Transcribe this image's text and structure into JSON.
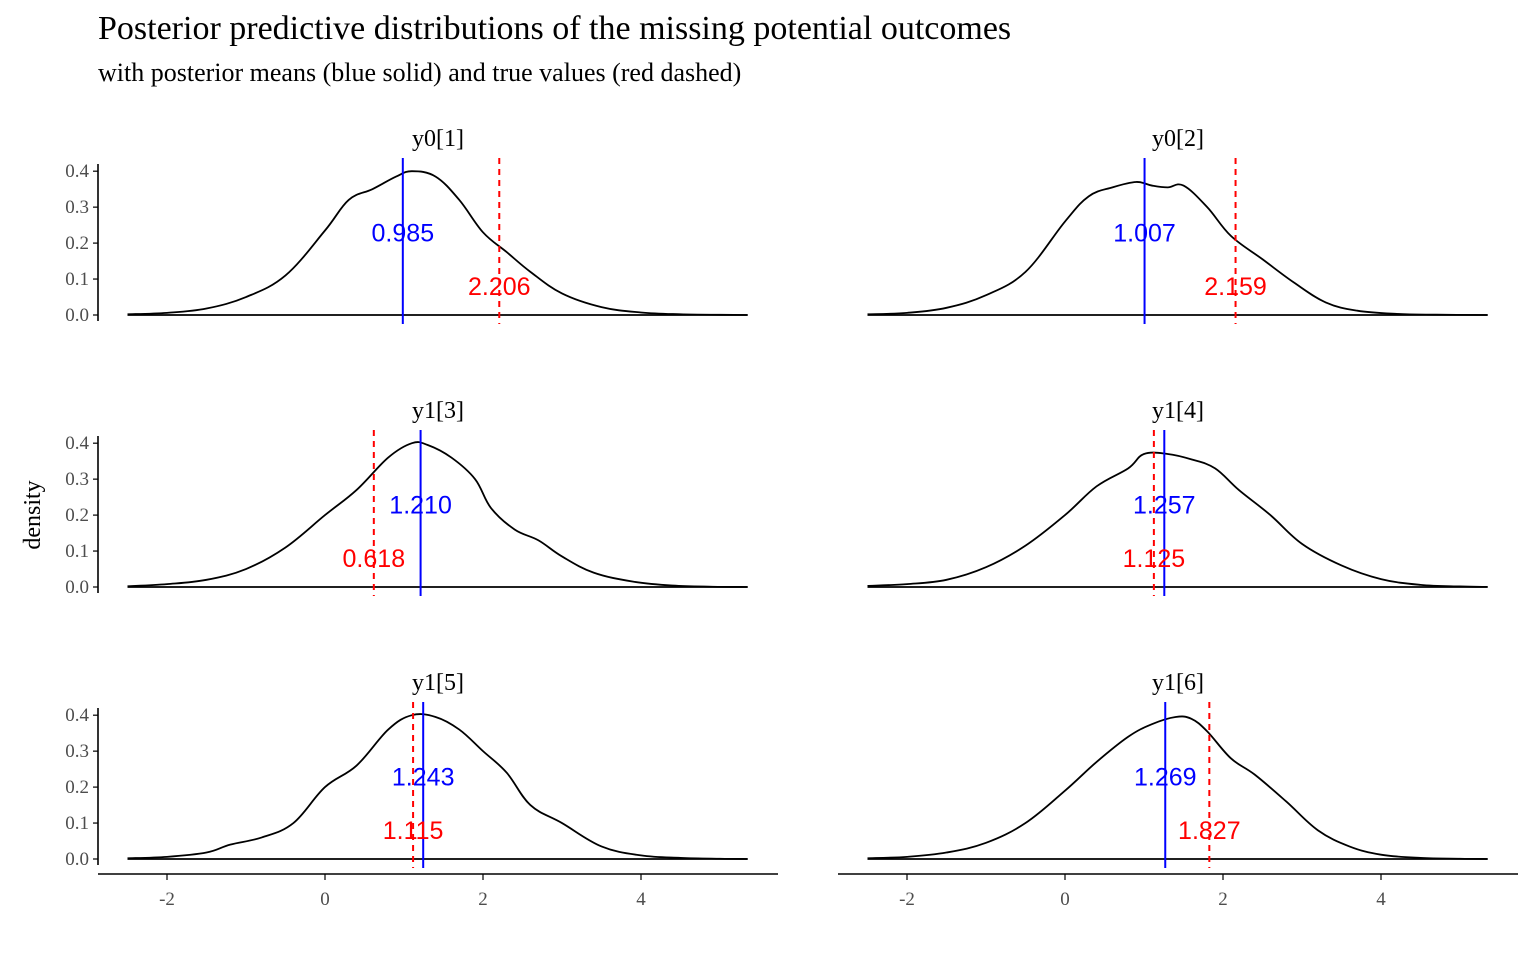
{
  "chart_data": {
    "type": "area",
    "title": "Posterior predictive distributions of the missing potential outcomes",
    "subtitle": "with posterior means (blue solid) and true values (red dashed)",
    "xlabel": "",
    "ylabel": "density",
    "xlim": [
      -2.55,
      5.55
    ],
    "ylim": [
      0,
      0.42
    ],
    "x_ticks": [
      -2,
      0,
      2,
      4
    ],
    "y_ticks": [
      0.0,
      0.1,
      0.2,
      0.3,
      0.4
    ],
    "y_tick_labels": [
      "0.0",
      "0.1",
      "0.2",
      "0.3",
      "0.4"
    ],
    "grid": false,
    "layout": "facets, 3 rows x 2 columns",
    "colors": {
      "density": "#000000",
      "posterior_mean": "#0000ff",
      "true_value": "#ff0000",
      "axis_text": "#4d4d4d"
    },
    "panels": [
      {
        "label": "y0[1]",
        "posterior_mean": 0.985,
        "posterior_mean_label": "0.985",
        "true_value": 2.206,
        "true_value_label": "2.206",
        "x": [
          -2.5,
          -2.0,
          -1.5,
          -1.0,
          -0.5,
          0.0,
          0.3,
          0.6,
          0.9,
          1.1,
          1.4,
          1.7,
          2.0,
          2.3,
          2.6,
          3.0,
          3.5,
          4.0,
          4.5,
          5.0,
          5.35
        ],
        "density": [
          0.002,
          0.006,
          0.018,
          0.05,
          0.11,
          0.235,
          0.32,
          0.35,
          0.385,
          0.4,
          0.385,
          0.32,
          0.23,
          0.175,
          0.12,
          0.06,
          0.022,
          0.007,
          0.002,
          0.0005,
          0.0001
        ]
      },
      {
        "label": "y0[2]",
        "posterior_mean": 1.007,
        "posterior_mean_label": "1.007",
        "true_value": 2.159,
        "true_value_label": "2.159",
        "x": [
          -2.5,
          -2.0,
          -1.5,
          -1.0,
          -0.5,
          0.0,
          0.3,
          0.6,
          0.9,
          1.1,
          1.3,
          1.5,
          1.8,
          2.1,
          2.5,
          2.9,
          3.3,
          3.7,
          4.2,
          4.7,
          5.35
        ],
        "density": [
          0.002,
          0.006,
          0.02,
          0.055,
          0.12,
          0.26,
          0.33,
          0.355,
          0.37,
          0.36,
          0.355,
          0.36,
          0.3,
          0.22,
          0.155,
          0.09,
          0.035,
          0.012,
          0.003,
          0.0008,
          0.0001
        ]
      },
      {
        "label": "y1[3]",
        "posterior_mean": 1.21,
        "posterior_mean_label": "1.210",
        "true_value": 0.618,
        "true_value_label": "0.618",
        "x": [
          -2.5,
          -2.0,
          -1.5,
          -1.0,
          -0.5,
          0.0,
          0.4,
          0.8,
          1.1,
          1.3,
          1.6,
          1.9,
          2.1,
          2.4,
          2.7,
          3.0,
          3.4,
          3.9,
          4.4,
          4.9,
          5.35
        ],
        "density": [
          0.002,
          0.008,
          0.02,
          0.05,
          0.11,
          0.2,
          0.27,
          0.36,
          0.4,
          0.395,
          0.36,
          0.3,
          0.22,
          0.16,
          0.13,
          0.085,
          0.04,
          0.015,
          0.004,
          0.0008,
          0.0001
        ]
      },
      {
        "label": "y1[4]",
        "posterior_mean": 1.257,
        "posterior_mean_label": "1.257",
        "true_value": 1.125,
        "true_value_label": "1.125",
        "x": [
          -2.5,
          -2.0,
          -1.5,
          -1.0,
          -0.5,
          0.0,
          0.4,
          0.8,
          1.0,
          1.3,
          1.6,
          1.9,
          2.2,
          2.6,
          3.0,
          3.5,
          4.0,
          4.5,
          5.0,
          5.35
        ],
        "density": [
          0.003,
          0.008,
          0.02,
          0.055,
          0.115,
          0.2,
          0.28,
          0.33,
          0.37,
          0.37,
          0.355,
          0.33,
          0.27,
          0.2,
          0.12,
          0.06,
          0.022,
          0.006,
          0.0015,
          0.0003
        ]
      },
      {
        "label": "y1[5]",
        "posterior_mean": 1.243,
        "posterior_mean_label": "1.243",
        "true_value": 1.115,
        "true_value_label": "1.115",
        "x": [
          -2.5,
          -2.0,
          -1.5,
          -1.2,
          -0.8,
          -0.4,
          0.0,
          0.4,
          0.8,
          1.1,
          1.4,
          1.7,
          2.0,
          2.3,
          2.6,
          3.0,
          3.5,
          4.0,
          4.5,
          5.0,
          5.35
        ],
        "density": [
          0.002,
          0.006,
          0.018,
          0.04,
          0.06,
          0.1,
          0.2,
          0.26,
          0.36,
          0.4,
          0.395,
          0.36,
          0.3,
          0.24,
          0.15,
          0.1,
          0.035,
          0.01,
          0.003,
          0.0007,
          0.0001
        ]
      },
      {
        "label": "y1[6]",
        "posterior_mean": 1.269,
        "posterior_mean_label": "1.269",
        "true_value": 1.827,
        "true_value_label": "1.827",
        "x": [
          -2.5,
          -2.0,
          -1.5,
          -1.0,
          -0.5,
          0.0,
          0.4,
          0.8,
          1.1,
          1.4,
          1.6,
          1.8,
          2.1,
          2.4,
          2.8,
          3.2,
          3.6,
          4.0,
          4.5,
          5.0,
          5.35
        ],
        "density": [
          0.002,
          0.006,
          0.018,
          0.045,
          0.1,
          0.19,
          0.27,
          0.34,
          0.375,
          0.395,
          0.39,
          0.355,
          0.28,
          0.235,
          0.16,
          0.08,
          0.035,
          0.012,
          0.003,
          0.0007,
          0.0001
        ]
      }
    ]
  }
}
